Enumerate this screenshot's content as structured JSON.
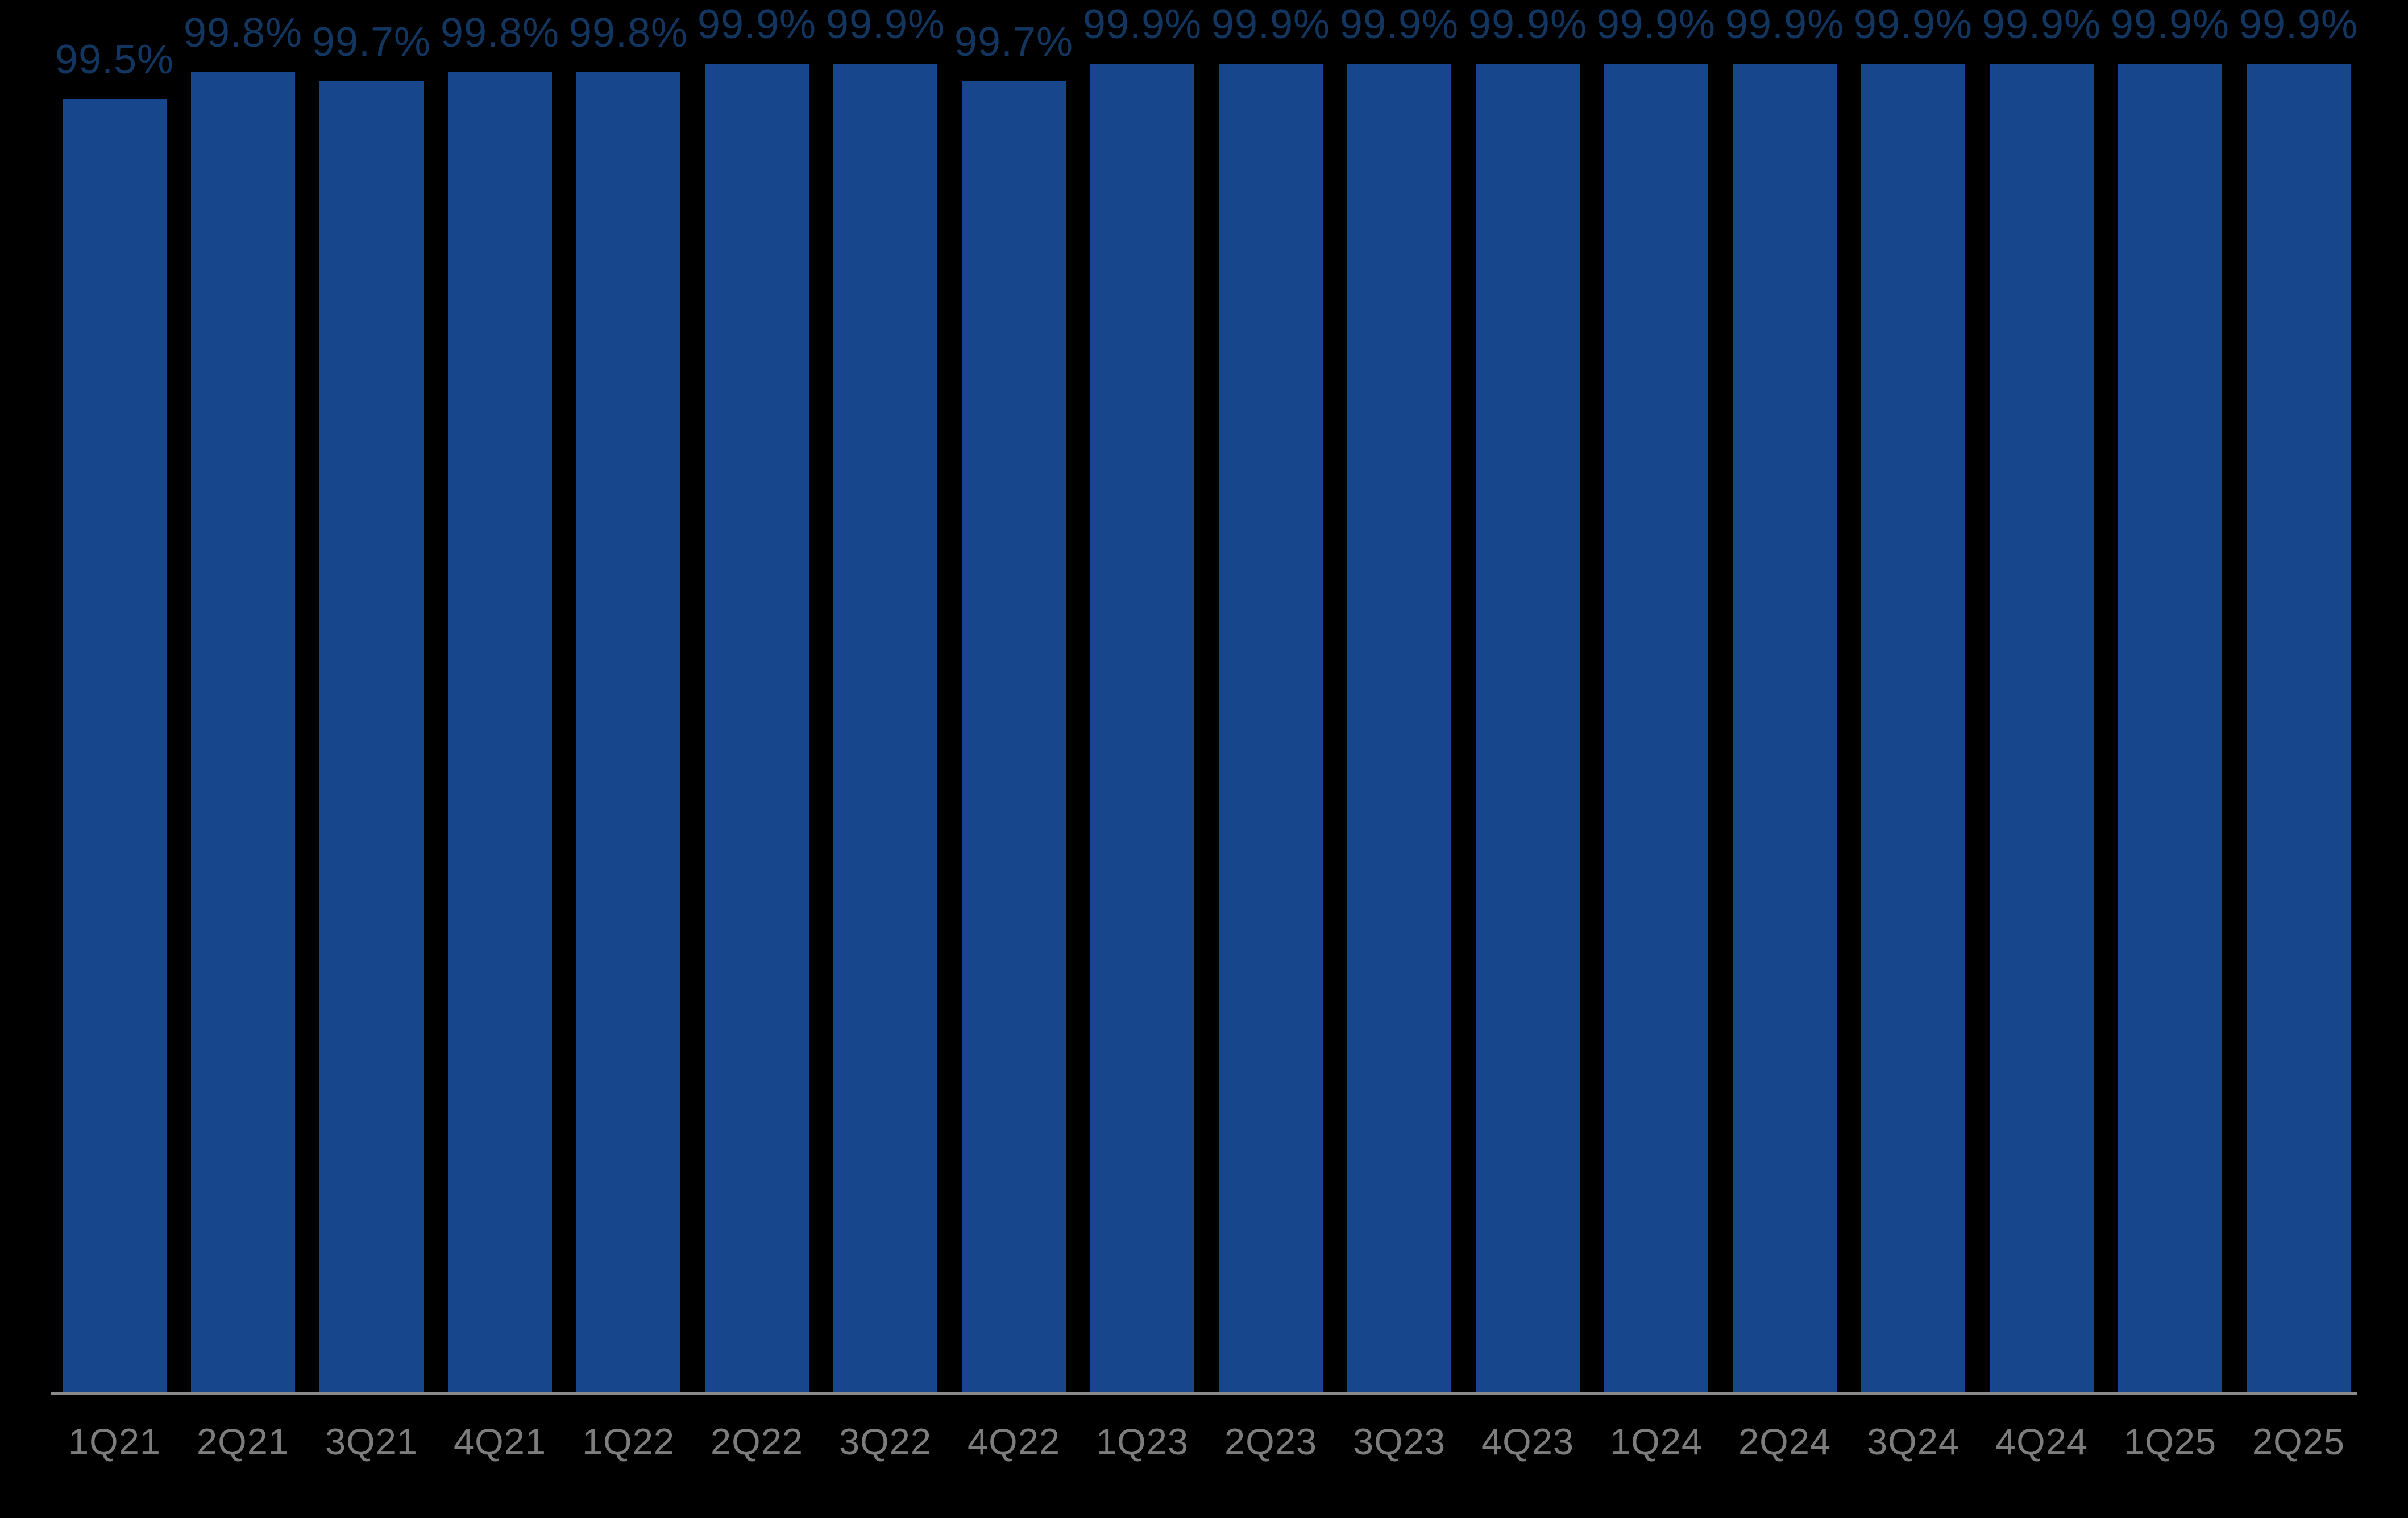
{
  "chart_data": {
    "type": "bar",
    "title": "",
    "xlabel": "",
    "ylabel": "",
    "categories": [
      "1Q21",
      "2Q21",
      "3Q21",
      "4Q21",
      "1Q22",
      "2Q22",
      "3Q22",
      "4Q22",
      "1Q23",
      "2Q23",
      "3Q23",
      "4Q23",
      "1Q24",
      "2Q24",
      "3Q24",
      "4Q24",
      "1Q25",
      "2Q25"
    ],
    "values": [
      99.5,
      99.8,
      99.7,
      99.8,
      99.8,
      99.9,
      99.9,
      99.7,
      99.9,
      99.9,
      99.9,
      99.9,
      99.9,
      99.9,
      99.9,
      99.9,
      99.9,
      99.9
    ],
    "value_labels": [
      "99.5%",
      "99.8%",
      "99.7%",
      "99.8%",
      "99.8%",
      "99.9%",
      "99.9%",
      "99.7%",
      "99.9%",
      "99.9%",
      "99.9%",
      "99.9%",
      "99.9%",
      "99.9%",
      "99.9%",
      "99.9%",
      "99.9%",
      "99.9%"
    ],
    "ylim": [
      85,
      100
    ],
    "grid": false,
    "legend_position": "none",
    "colors": {
      "background": "#000000",
      "bar": "#17468C",
      "value_label": "#12365F",
      "axis_label": "#7D7D7D",
      "axis_line": "#8B8B8B"
    }
  }
}
